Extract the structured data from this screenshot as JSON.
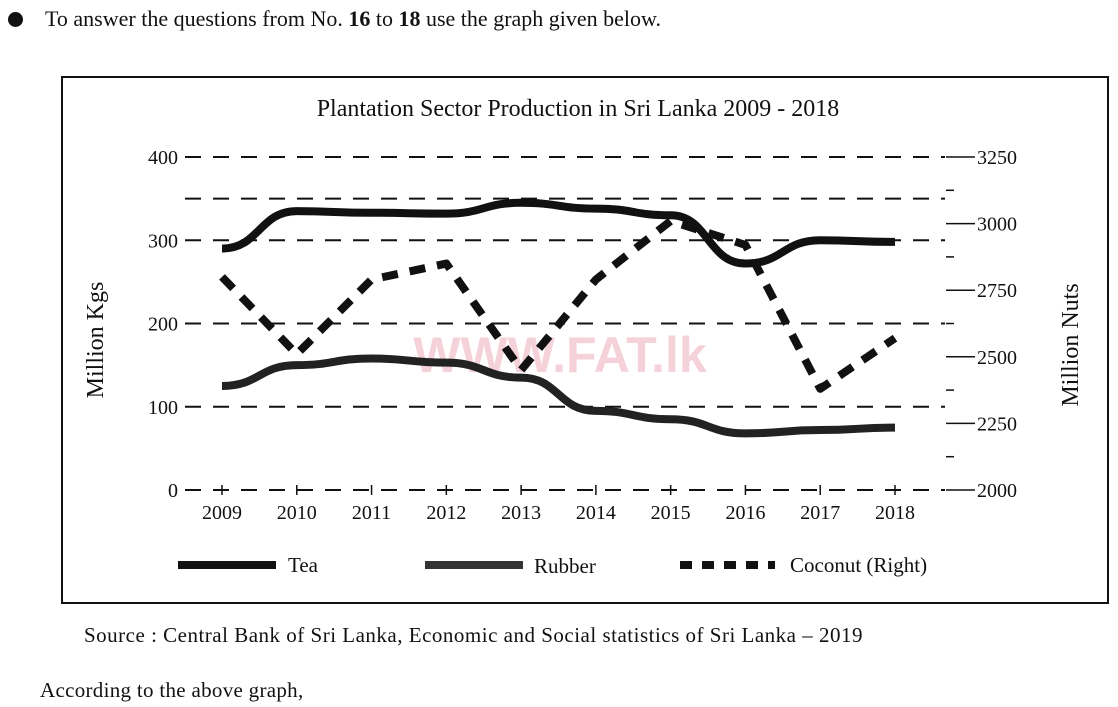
{
  "intro": {
    "prefix": "To answer the questions from No.",
    "from": "16",
    "to_word": "to",
    "to": "18",
    "suffix": "use the graph given below."
  },
  "source": "Source : Central Bank of Sri Lanka, Economic and Social statistics of Sri Lanka – 2019",
  "closing": "According to the above graph,",
  "watermark": "WWW.FAT.lk",
  "chart_data": {
    "type": "line",
    "title": "Plantation Sector Production in Sri Lanka 2009 - 2018",
    "ylabel": "Million Kgs",
    "y2label": "Million Nuts",
    "xlabel": "",
    "categories": [
      "2009",
      "2010",
      "2011",
      "2012",
      "2013",
      "2014",
      "2015",
      "2016",
      "2017",
      "2018"
    ],
    "ylim": [
      0,
      400
    ],
    "yticks": [
      "0",
      "100",
      "200",
      "300",
      "400"
    ],
    "y2lim": [
      2000,
      3250
    ],
    "y2ticks": [
      "2000",
      "2250",
      "2500",
      "2750",
      "3000",
      "3250"
    ],
    "grid": true,
    "legend_position": "bottom",
    "series": [
      {
        "name": "Tea",
        "axis": "left",
        "style": "solid",
        "color": "#111111",
        "values": [
          290,
          335,
          333,
          332,
          345,
          338,
          330,
          272,
          300,
          298
        ]
      },
      {
        "name": "Rubber",
        "axis": "left",
        "style": "solid",
        "color": "#222222",
        "values": [
          125,
          150,
          158,
          153,
          135,
          95,
          85,
          68,
          72,
          75
        ]
      },
      {
        "name": "Coconut (Right)",
        "axis": "right",
        "style": "dashed",
        "color": "#111111",
        "values": [
          2800,
          2510,
          2790,
          2850,
          2450,
          2790,
          3010,
          2920,
          2380,
          2570
        ]
      }
    ]
  }
}
